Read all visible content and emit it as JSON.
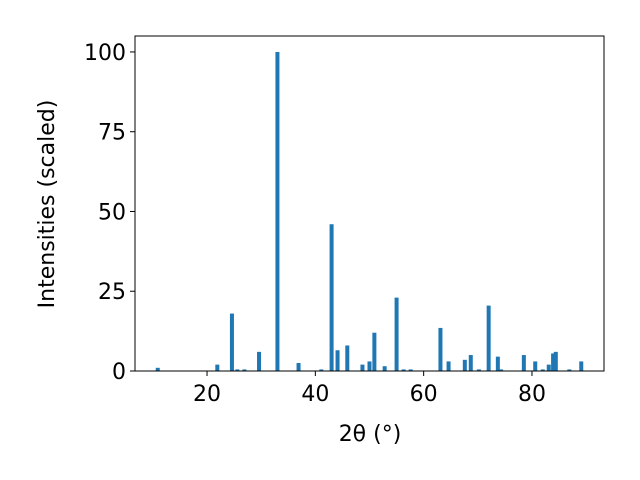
{
  "chart_data": {
    "type": "bar",
    "x_label": "2θ (°)",
    "y_label": "Intensities (scaled)",
    "x": [
      10.9,
      21.9,
      24.6,
      25.6,
      26.9,
      29.6,
      33.0,
      36.9,
      41.1,
      43.0,
      44.1,
      45.9,
      48.7,
      50.0,
      50.9,
      52.8,
      55.0,
      56.3,
      57.6,
      63.1,
      64.6,
      67.6,
      68.7,
      70.2,
      72.0,
      73.7,
      74.3,
      78.5,
      80.6,
      82.0,
      83.1,
      83.9,
      84.4,
      86.9,
      89.1
    ],
    "values": [
      1,
      2,
      18,
      0.5,
      0.5,
      6,
      100,
      2.5,
      0.5,
      46,
      6.5,
      8,
      2,
      3,
      12,
      1.5,
      23,
      0.5,
      0.5,
      13.5,
      3,
      3.5,
      5,
      0.5,
      20.5,
      4.5,
      0.5,
      5,
      3,
      0.5,
      2,
      5.5,
      6,
      0.5,
      3
    ],
    "color": "#1f77b4",
    "xlim": [
      6.7,
      93.3
    ],
    "xticks": [
      20,
      40,
      60,
      80
    ],
    "ylim": [
      0,
      105
    ],
    "yticks": [
      0,
      25,
      50,
      75,
      100
    ]
  }
}
